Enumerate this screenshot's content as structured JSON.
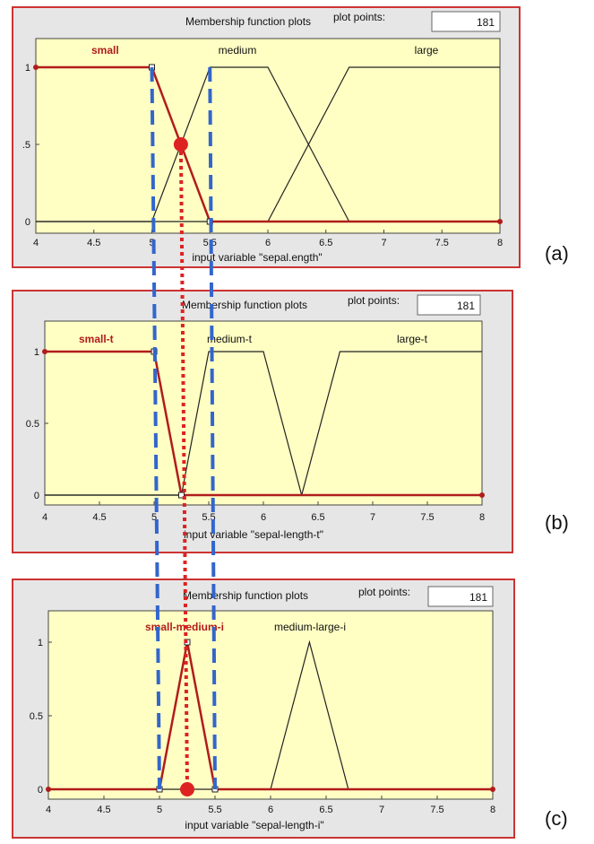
{
  "colors": {
    "panel_bg": "#e6e6e6",
    "panel_border": "#cc3333",
    "plot_bg": "#ffffc4",
    "selected_curve": "#b01c1c",
    "other_curve": "#222222",
    "dashed_guide": "#3366cc",
    "dotted_guide": "#dd2222",
    "marker": "#dd2222"
  },
  "panels": [
    {
      "id": "a",
      "panel_label": "(a)",
      "title": "Membership function plots",
      "plot_points_label": "plot points:",
      "plot_points_value": "181",
      "xlabel": "input variable \"sepal.ength\"",
      "mf_labels": [
        "small",
        "medium",
        "large"
      ]
    },
    {
      "id": "b",
      "panel_label": "(b)",
      "title": "Membership function plots",
      "plot_points_label": "plot points:",
      "plot_points_value": "181",
      "xlabel": "input variable \"sepal-length-t\"",
      "mf_labels": [
        "small-t",
        "medium-t",
        "large-t"
      ]
    },
    {
      "id": "c",
      "panel_label": "(c)",
      "title": "Membership function plots",
      "plot_points_label": "plot points:",
      "plot_points_value": "181",
      "xlabel": "input variable \"sepal-length-i\"",
      "mf_labels": [
        "small-medium-i",
        "medium-large-i"
      ]
    }
  ],
  "chart_data": [
    {
      "type": "line",
      "panel": "a",
      "xlim": [
        4,
        8
      ],
      "ylim": [
        0,
        1
      ],
      "xticks": [
        "4",
        "4.5",
        "5",
        "5.5",
        "6",
        "6.5",
        "7",
        "7.5",
        "8"
      ],
      "yticks": [
        "0",
        ".5",
        "1"
      ],
      "series": [
        {
          "name": "small",
          "highlight": true,
          "x": [
            4,
            5,
            5.5,
            8
          ],
          "y": [
            1,
            1,
            0,
            0
          ]
        },
        {
          "name": "medium",
          "highlight": false,
          "x": [
            4,
            5,
            5.5,
            6,
            6.7,
            8
          ],
          "y": [
            0,
            0,
            1,
            1,
            0,
            0
          ]
        },
        {
          "name": "large",
          "highlight": false,
          "x": [
            4,
            6,
            6.7,
            8
          ],
          "y": [
            0,
            0,
            1,
            1
          ]
        }
      ],
      "marker": {
        "x": 5.25,
        "y": 0.5
      }
    },
    {
      "type": "line",
      "panel": "b",
      "xlim": [
        4,
        8
      ],
      "ylim": [
        0,
        1
      ],
      "xticks": [
        "4",
        "4.5",
        "5",
        "5.5",
        "6",
        "6.5",
        "7",
        "7.5",
        "8"
      ],
      "yticks": [
        "0",
        "0.5",
        "1"
      ],
      "series": [
        {
          "name": "small-t",
          "highlight": true,
          "x": [
            4,
            5,
            5.25,
            8
          ],
          "y": [
            1,
            1,
            0,
            0
          ]
        },
        {
          "name": "medium-t",
          "highlight": false,
          "x": [
            4,
            5.25,
            5.5,
            6,
            6.35,
            8
          ],
          "y": [
            0,
            0,
            1,
            1,
            0,
            0
          ]
        },
        {
          "name": "large-t",
          "highlight": false,
          "x": [
            4,
            6.35,
            6.7,
            8
          ],
          "y": [
            0,
            0,
            1,
            1
          ]
        }
      ]
    },
    {
      "type": "line",
      "panel": "c",
      "xlim": [
        4,
        8
      ],
      "ylim": [
        0,
        1
      ],
      "xticks": [
        "4",
        "4.5",
        "5",
        "5.5",
        "6",
        "6.5",
        "7",
        "7.5",
        "8"
      ],
      "yticks": [
        "0",
        "0.5",
        "1"
      ],
      "series": [
        {
          "name": "small-medium-i",
          "highlight": true,
          "x": [
            4,
            5,
            5.25,
            5.5,
            8
          ],
          "y": [
            0,
            0,
            1,
            0,
            0
          ]
        },
        {
          "name": "medium-large-i",
          "highlight": false,
          "x": [
            4,
            6,
            6.35,
            6.7,
            8
          ],
          "y": [
            0,
            0,
            1,
            0,
            0
          ]
        }
      ],
      "marker": {
        "x": 5.25,
        "y": 0
      }
    }
  ],
  "guides": {
    "dashed_x": [
      5,
      5.5
    ],
    "dotted_x": 5.25
  }
}
